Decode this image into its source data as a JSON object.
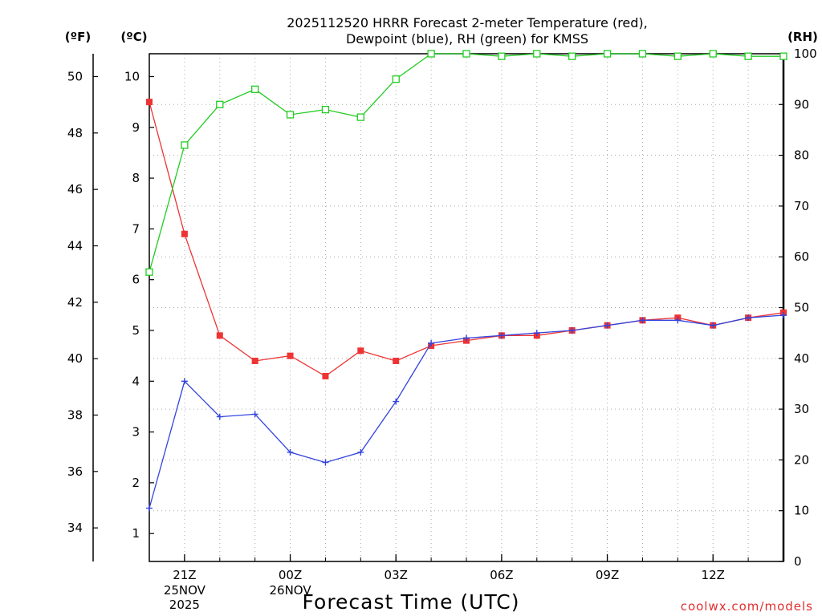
{
  "chart_data": {
    "type": "line",
    "title": [
      "2025112520 HRRR Forecast 2-meter Temperature (red),",
      "Dewpoint (blue), RH (green) for KMSS"
    ],
    "xlabel": "Forecast Time (UTC)",
    "credit": "coolwx.com/models",
    "x_index_range": [
      0,
      18
    ],
    "x_ticks": [
      {
        "index": 1,
        "label": "21Z",
        "sub": [
          "25NOV",
          "2025"
        ]
      },
      {
        "index": 4,
        "label": "00Z",
        "sub": [
          "26NOV"
        ]
      },
      {
        "index": 7,
        "label": "03Z",
        "sub": []
      },
      {
        "index": 10,
        "label": "06Z",
        "sub": []
      },
      {
        "index": 13,
        "label": "09Z",
        "sub": []
      },
      {
        "index": 16,
        "label": "12Z",
        "sub": []
      }
    ],
    "axes": {
      "fahrenheit": {
        "unit_label": "(ºF)",
        "ticks": [
          34,
          36,
          38,
          40,
          42,
          44,
          46,
          48,
          50
        ]
      },
      "celsius": {
        "unit_label": "(ºC)",
        "range": [
          0.45,
          10.45
        ],
        "ticks": [
          1,
          2,
          3,
          4,
          5,
          6,
          7,
          8,
          9,
          10
        ]
      },
      "rh": {
        "unit_label": "(RH)",
        "range": [
          0,
          100
        ],
        "ticks": [
          0,
          10,
          20,
          30,
          40,
          50,
          60,
          70,
          80,
          90,
          100
        ]
      }
    },
    "series": [
      {
        "key": "temperature",
        "color": "#ee3333",
        "axis": "celsius",
        "marker": "filled-square",
        "values": [
          9.5,
          6.9,
          4.9,
          4.4,
          4.5,
          4.1,
          4.6,
          4.4,
          4.7,
          4.8,
          4.9,
          4.9,
          5.0,
          5.1,
          5.2,
          5.25,
          5.1,
          5.25,
          5.35
        ]
      },
      {
        "key": "dewpoint",
        "color": "#3344dd",
        "axis": "celsius",
        "marker": "plus",
        "values": [
          1.5,
          4.0,
          3.3,
          3.35,
          2.6,
          2.4,
          2.6,
          3.6,
          4.75,
          4.85,
          4.9,
          4.95,
          5.0,
          5.1,
          5.2,
          5.2,
          5.1,
          5.25,
          5.3
        ]
      },
      {
        "key": "rh",
        "color": "#22cc22",
        "axis": "rh",
        "marker": "open-square",
        "values": [
          57,
          82,
          90,
          93,
          88,
          89,
          87.5,
          95,
          100,
          100,
          99.5,
          100,
          99.5,
          100,
          100,
          99.5,
          100,
          99.5,
          99.5
        ]
      }
    ]
  }
}
